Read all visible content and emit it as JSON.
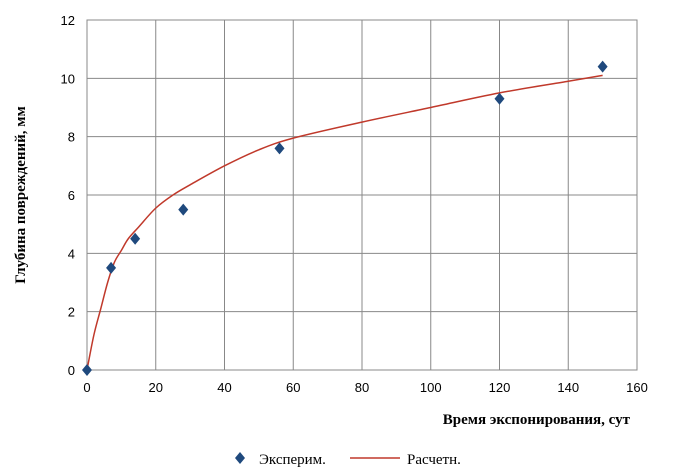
{
  "chart_data": {
    "type": "scatter",
    "title": "",
    "xlabel": "Время экспонирования, сут",
    "ylabel": "Глубина повреждений, мм",
    "xlim": [
      0,
      160
    ],
    "ylim": [
      0,
      12
    ],
    "xticks": [
      0,
      20,
      40,
      60,
      80,
      100,
      120,
      140,
      160
    ],
    "yticks": [
      0,
      2,
      4,
      6,
      8,
      10,
      12
    ],
    "grid": true,
    "legend_position": "bottom",
    "series": [
      {
        "name": "Эксперим.",
        "kind": "scatter",
        "marker": "diamond",
        "color": "#1f497d",
        "x": [
          0,
          7,
          14,
          28,
          56,
          120,
          150
        ],
        "y": [
          0,
          3.5,
          4.5,
          5.5,
          7.6,
          9.3,
          10.4
        ]
      },
      {
        "name": "Расчетн.",
        "kind": "line",
        "color": "#c0392b",
        "x": [
          0,
          2,
          4,
          6,
          8,
          10,
          12,
          15,
          20,
          25,
          30,
          40,
          50,
          60,
          80,
          100,
          120,
          140,
          150
        ],
        "y": [
          0,
          1.2,
          2.1,
          3.0,
          3.7,
          4.1,
          4.5,
          4.9,
          5.55,
          6.0,
          6.35,
          7.0,
          7.55,
          7.95,
          8.5,
          9.0,
          9.5,
          9.9,
          10.1
        ]
      }
    ]
  }
}
